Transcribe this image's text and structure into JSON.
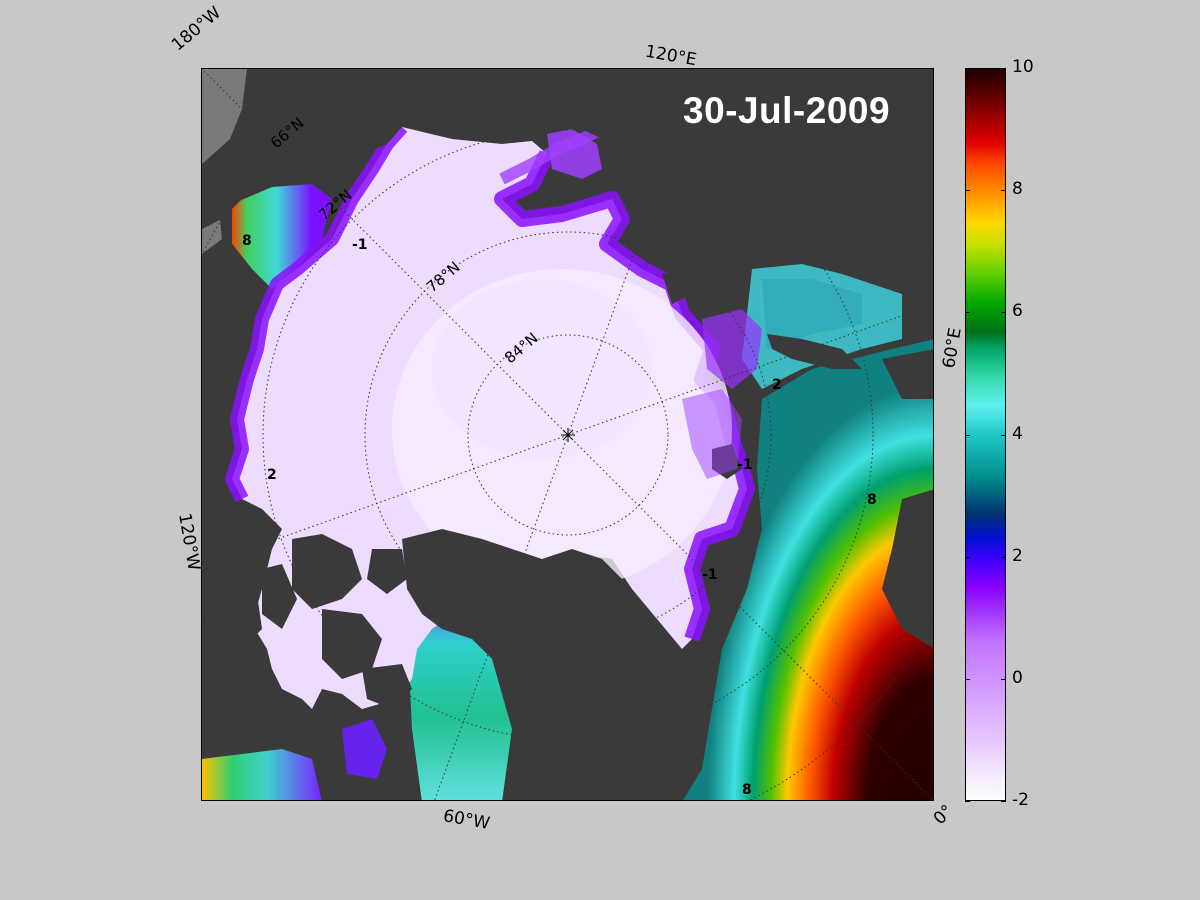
{
  "title_date": "30-Jul-2009",
  "edge_labels": {
    "top_left": "180°W",
    "top_right": "120°E",
    "right": "60°E",
    "left": "120°W",
    "bottom_left": "60°W",
    "bottom_right": "0°"
  },
  "latitude_labels": [
    "66°N",
    "72°N",
    "78°N",
    "84°N"
  ],
  "contour_labels": [
    "-1",
    "2",
    "8"
  ],
  "colorbar": {
    "ticks": [
      "10",
      "8",
      "6",
      "4",
      "2",
      "0",
      "-2"
    ],
    "min": -2,
    "max": 10
  },
  "colors": {
    "background": "#c8c8c8",
    "land": "#3a3a3a",
    "unmapped": "#7a7a7a",
    "ice": "#f0e0ff",
    "date_text": "#ffffff"
  }
}
